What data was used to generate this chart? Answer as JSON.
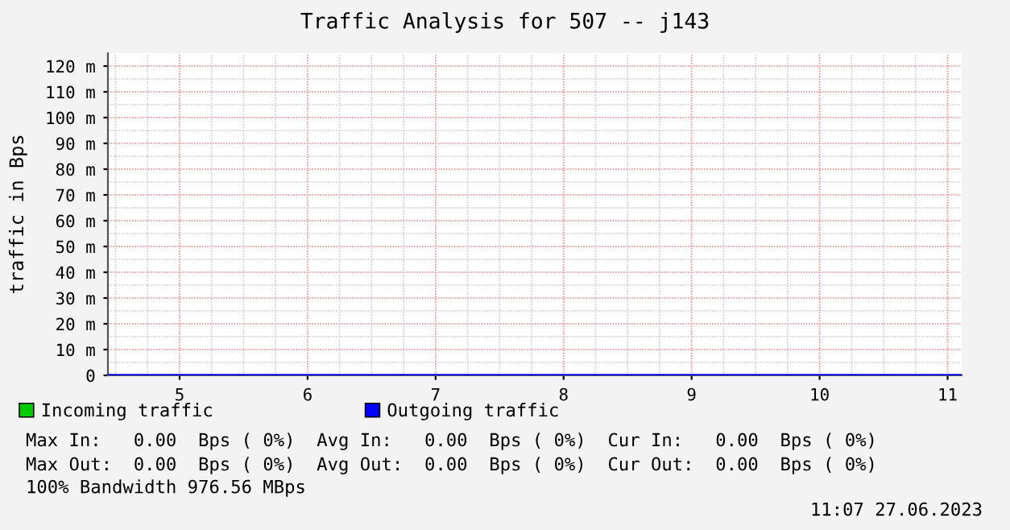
{
  "chart_data": {
    "type": "line",
    "title": "Traffic Analysis for 507 -- j143",
    "ylabel": "traffic in Bps",
    "x": [
      4.44,
      11.11
    ],
    "series": [
      {
        "name": "Incoming traffic",
        "color": "#00cc00",
        "values": [
          null,
          null
        ]
      },
      {
        "name": "Outgoing traffic",
        "color": "#0000ff",
        "values": [
          0,
          0
        ]
      }
    ],
    "xlim": [
      4.44,
      11.11
    ],
    "xticks": [
      5,
      6,
      7,
      8,
      9,
      10,
      11
    ],
    "ylim": [
      0,
      125
    ],
    "yticks": [
      0,
      {
        "value": 10,
        "label": "10 m"
      },
      {
        "value": 20,
        "label": "20 m"
      },
      {
        "value": 30,
        "label": "30 m"
      },
      {
        "value": 40,
        "label": "40 m"
      },
      {
        "value": 50,
        "label": "50 m"
      },
      {
        "value": 60,
        "label": "60 m"
      },
      {
        "value": 70,
        "label": "70 m"
      },
      {
        "value": 80,
        "label": "80 m"
      },
      {
        "value": 90,
        "label": "90 m"
      },
      {
        "value": 100,
        "label": "100 m"
      },
      {
        "value": 110,
        "label": "110 m"
      },
      {
        "value": 120,
        "label": "120 m"
      }
    ],
    "grid": true,
    "legend": "bottom",
    "annotations": [
      "Max In:   0.00  Bps ( 0%)  Avg In:   0.00  Bps ( 0%)  Cur In:   0.00  Bps ( 0%)",
      "Max Out:  0.00  Bps ( 0%)  Avg Out:  0.00  Bps ( 0%)  Cur Out:  0.00  Bps ( 0%)",
      "100% Bandwidth 976.56 MBps",
      "11:07 27.06.2023"
    ]
  }
}
